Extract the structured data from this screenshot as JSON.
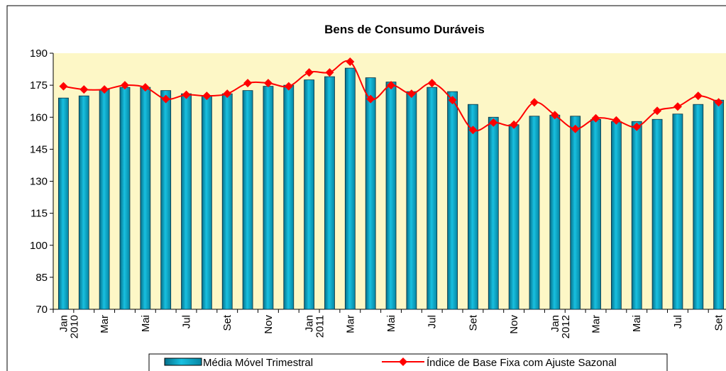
{
  "chart_data": {
    "type": "bar_line",
    "title": "Bens de Consumo Duráveis",
    "categories": [
      "Jan",
      null,
      "Mar",
      null,
      "Mai",
      null,
      "Jul",
      null,
      "Set",
      null,
      "Nov",
      null,
      "Jan",
      null,
      "Mar",
      null,
      "Mai",
      null,
      "Jul",
      null,
      "Set",
      null,
      "Nov",
      null,
      "Jan",
      null,
      "Mar",
      null,
      "Mai",
      null,
      "Jul",
      null,
      "Set"
    ],
    "years": [
      "2010",
      null,
      null,
      null,
      null,
      null,
      null,
      null,
      null,
      null,
      null,
      null,
      "2011",
      null,
      null,
      null,
      null,
      null,
      null,
      null,
      null,
      null,
      null,
      null,
      "2012",
      null,
      null,
      null,
      null,
      null,
      null,
      null,
      null
    ],
    "series": [
      {
        "name": "Média Móvel Trimestral",
        "type": "bar",
        "color": "#0aa6c8",
        "values": [
          169,
          170,
          173,
          174,
          174,
          172.5,
          171,
          170,
          171,
          172.5,
          174.5,
          175,
          177.5,
          179,
          183,
          178.5,
          176.5,
          172,
          174,
          172,
          166,
          160,
          156.5,
          160.5,
          161,
          160.5,
          159,
          158,
          158,
          159,
          161.5,
          166,
          168
        ]
      },
      {
        "name": "Índice de Base Fixa com Ajuste Sazonal",
        "type": "line",
        "color": "#ff0000",
        "values": [
          174.5,
          173,
          173,
          175,
          174,
          168.5,
          170.5,
          170,
          171,
          176,
          176,
          174.5,
          181,
          181,
          186,
          168.5,
          175,
          171,
          176,
          168,
          154,
          157.5,
          156.5,
          167,
          161,
          154.5,
          159.5,
          158.5,
          155.5,
          163,
          165,
          170,
          167
        ]
      }
    ],
    "ylim": [
      70,
      190
    ],
    "yticks": [
      70,
      85,
      100,
      115,
      130,
      145,
      160,
      175,
      190
    ]
  }
}
